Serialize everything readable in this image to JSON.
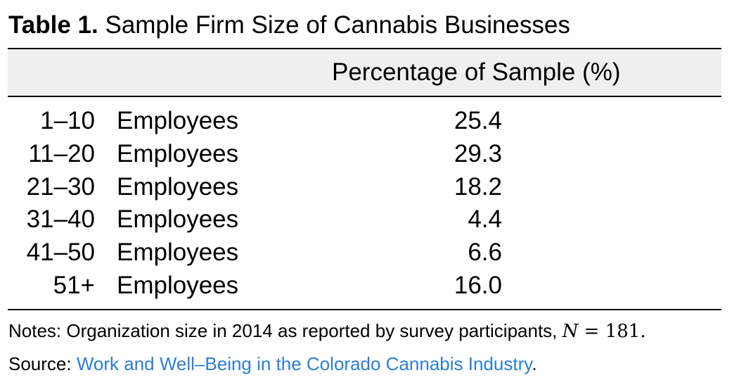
{
  "table": {
    "label": "Table 1.",
    "title": "Sample Firm Size of Cannabis Businesses",
    "column_header": "Percentage of Sample (%)",
    "rows": [
      {
        "range": "1–10",
        "unit": "Employees",
        "percentage": "25.4"
      },
      {
        "range": "11–20",
        "unit": "Employees",
        "percentage": "29.3"
      },
      {
        "range": "21–30",
        "unit": "Employees",
        "percentage": "18.2"
      },
      {
        "range": "31–40",
        "unit": "Employees",
        "percentage": "4.4"
      },
      {
        "range": "41–50",
        "unit": "Employees",
        "percentage": "6.6"
      },
      {
        "range": "51+",
        "unit": "Employees",
        "percentage": "16.0"
      }
    ]
  },
  "notes": {
    "text": "Notes: Organization size in 2014 as reported by survey participants, ",
    "math_var": "N",
    "math_rel": " = ",
    "math_val": "181",
    "end": "."
  },
  "source": {
    "prefix": "Source: ",
    "link_text": "Work and Well–Being in the Colorado Cannabis Industry",
    "suffix": ".",
    "link_color": "#2b7fd6"
  },
  "colors": {
    "header_band": "#efefef",
    "rules": "#000000"
  }
}
